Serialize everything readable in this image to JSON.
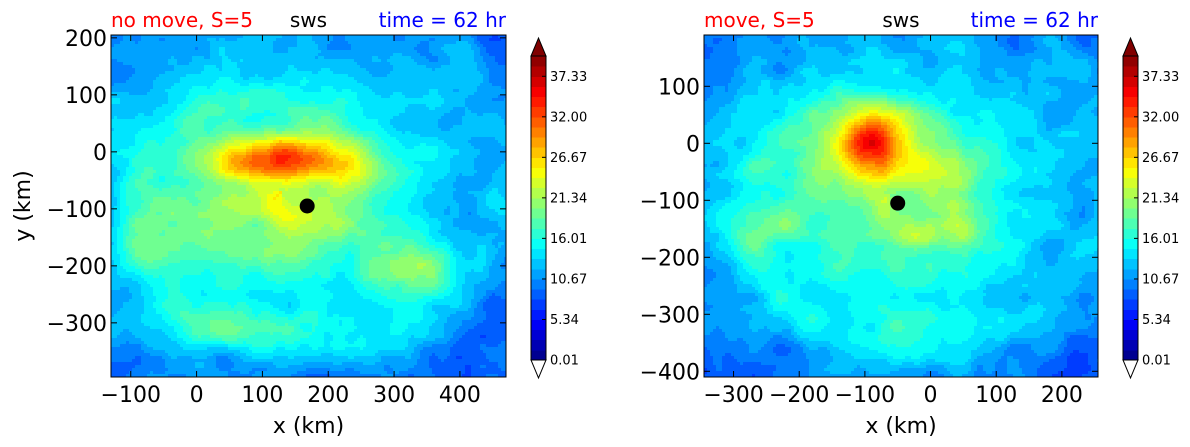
{
  "colors": {
    "title_left": "#ff0000",
    "title_center": "#000000",
    "title_right": "#0000ff",
    "marker": "#000000",
    "colormap": "jet"
  },
  "chart_data": [
    {
      "type": "heatmap",
      "title_left": "no move, S=5",
      "title_center": "sws",
      "title_right": "time = 62 hr",
      "xlabel": "x (km)",
      "ylabel": "y (km)",
      "xlim": [
        -130,
        470
      ],
      "ylim": [
        -395,
        205
      ],
      "xticks": [
        -100,
        0,
        100,
        200,
        300,
        400
      ],
      "xtick_labels": [
        "−100",
        "0",
        "100",
        "200",
        "300",
        "400"
      ],
      "yticks": [
        200,
        100,
        0,
        -100,
        -200,
        -300
      ],
      "ytick_labels": [
        "200",
        "100",
        "0",
        "−100",
        "−200",
        "−300"
      ],
      "marker": {
        "x": 168,
        "y": -95
      },
      "field": {
        "background": 7.5,
        "features": [
          {
            "x": 130,
            "y": -70,
            "sx": 230,
            "sy": 200,
            "amp": 10.5
          },
          {
            "x": 130,
            "y": -10,
            "sx": 75,
            "sy": 30,
            "amp": 13
          },
          {
            "x": 70,
            "y": -25,
            "sx": 40,
            "sy": 22,
            "amp": 4
          },
          {
            "x": 200,
            "y": -25,
            "sx": 40,
            "sy": 20,
            "amp": 3
          },
          {
            "x": 120,
            "y": -130,
            "sx": 90,
            "sy": 60,
            "amp": 3
          },
          {
            "x": 330,
            "y": -210,
            "sx": 45,
            "sy": 35,
            "amp": 8
          },
          {
            "x": -40,
            "y": -150,
            "sx": 60,
            "sy": 80,
            "amp": 3
          },
          {
            "x": 50,
            "y": -310,
            "sx": 130,
            "sy": 25,
            "amp": 5
          }
        ],
        "spiral": {
          "cx": 130,
          "cy": -70,
          "r0": 100,
          "growth": 38,
          "width": 22,
          "amp": 3.5
        }
      },
      "colorbar": {
        "min": 0.01,
        "max": 40,
        "levels": 30,
        "tick_values": [
          0.01,
          5.34,
          10.67,
          16.01,
          21.34,
          26.67,
          32.0,
          37.33
        ],
        "tick_labels": [
          "0.01",
          "5.34",
          "10.67",
          "16.01",
          "21.34",
          "26.67",
          "32.00",
          "37.33"
        ],
        "extend": "both"
      }
    },
    {
      "type": "heatmap",
      "title_left": "move, S=5",
      "title_center": "sws",
      "title_right": "time = 62 hr",
      "xlabel": "x (km)",
      "ylabel": "",
      "xlim": [
        -345,
        255
      ],
      "ylim": [
        -410,
        190
      ],
      "xticks": [
        -300,
        -200,
        -100,
        0,
        100,
        200
      ],
      "xtick_labels": [
        "−300",
        "−200",
        "−100",
        "0",
        "100",
        "200"
      ],
      "yticks": [
        100,
        0,
        -100,
        -200,
        -300,
        -400
      ],
      "ytick_labels": [
        "100",
        "0",
        "−100",
        "−200",
        "−300",
        "−400"
      ],
      "marker": {
        "x": -50,
        "y": -105
      },
      "field": {
        "background": 7.5,
        "features": [
          {
            "x": -60,
            "y": -90,
            "sx": 220,
            "sy": 200,
            "amp": 11
          },
          {
            "x": -90,
            "y": 10,
            "sx": 40,
            "sy": 35,
            "amp": 14
          },
          {
            "x": -60,
            "y": -40,
            "sx": 70,
            "sy": 40,
            "amp": 6
          },
          {
            "x": 45,
            "y": -150,
            "sx": 20,
            "sy": 25,
            "amp": 6
          },
          {
            "x": -20,
            "y": -165,
            "sx": 25,
            "sy": 15,
            "amp": 5
          },
          {
            "x": -250,
            "y": -150,
            "sx": 50,
            "sy": 30,
            "amp": 4
          },
          {
            "x": -50,
            "y": -320,
            "sx": 60,
            "sy": 30,
            "amp": 3.5
          }
        ],
        "spiral": {
          "cx": -60,
          "cy": -90,
          "r0": 100,
          "growth": 38,
          "width": 22,
          "amp": 3
        }
      },
      "colorbar": {
        "min": 0.01,
        "max": 40,
        "levels": 30,
        "tick_values": [
          0.01,
          5.34,
          10.67,
          16.01,
          21.34,
          26.67,
          32.0,
          37.33
        ],
        "tick_labels": [
          "0.01",
          "5.34",
          "10.67",
          "16.01",
          "21.34",
          "26.67",
          "32.00",
          "37.33"
        ],
        "extend": "both"
      }
    }
  ]
}
